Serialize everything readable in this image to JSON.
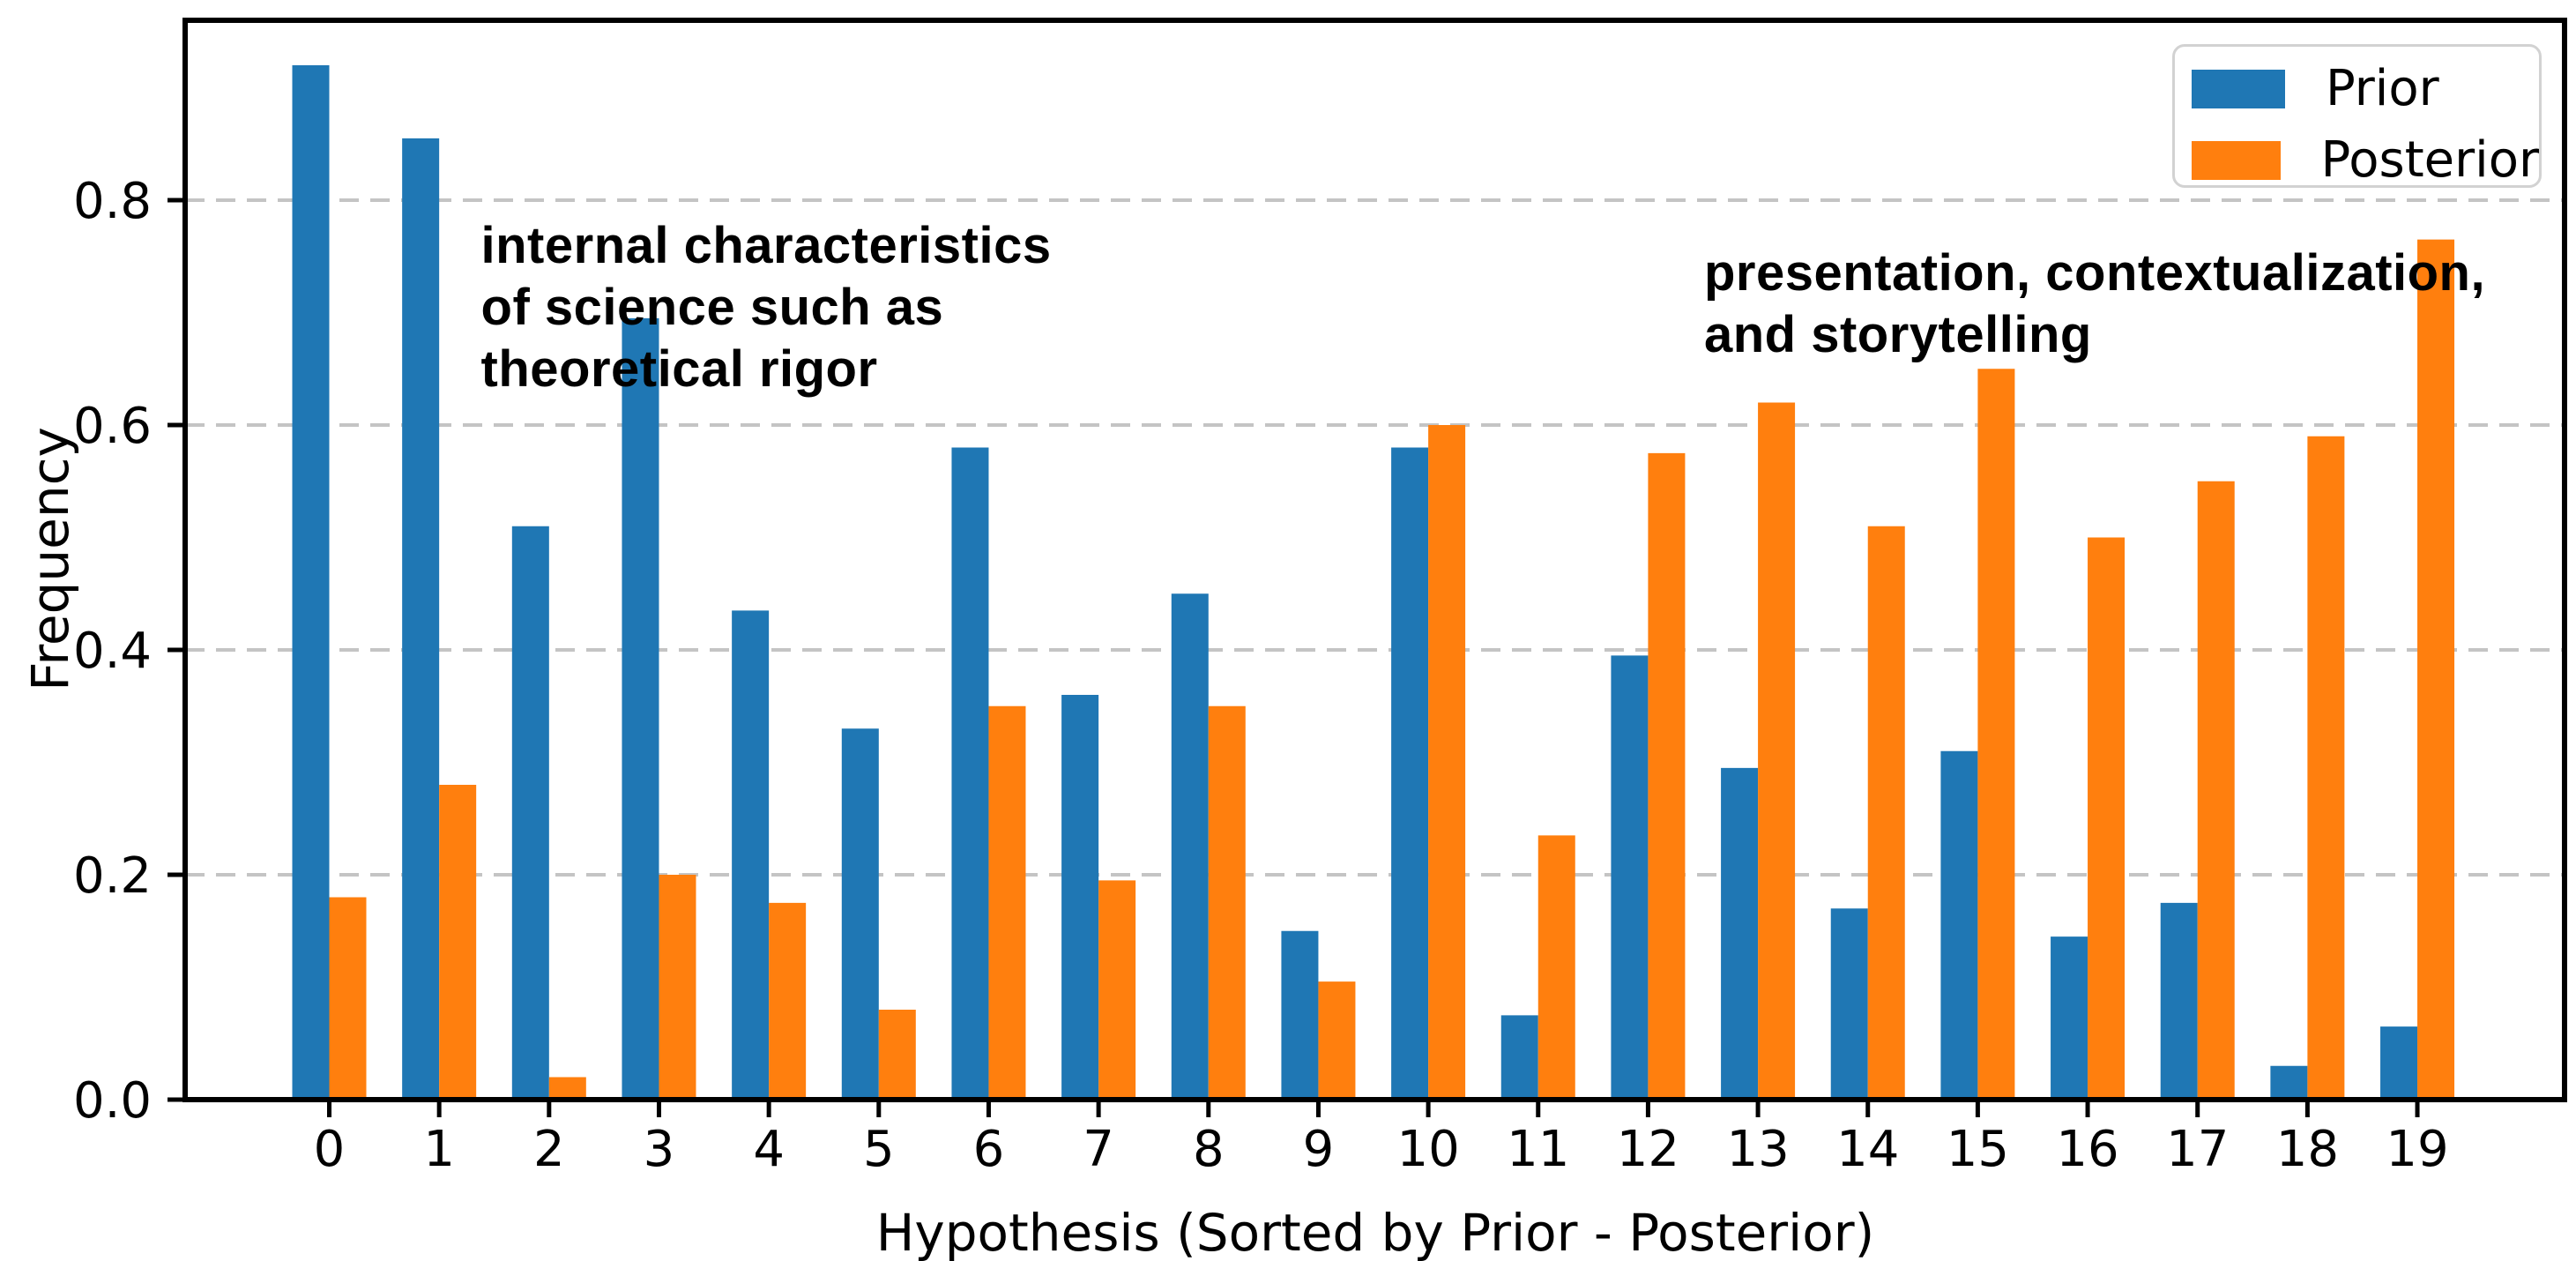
{
  "chart_data": {
    "type": "bar",
    "title": "",
    "xlabel": "Hypothesis (Sorted by Prior - Posterior)",
    "ylabel": "Frequency",
    "categories": [
      "0",
      "1",
      "2",
      "3",
      "4",
      "5",
      "6",
      "7",
      "8",
      "9",
      "10",
      "11",
      "12",
      "13",
      "14",
      "15",
      "16",
      "17",
      "18",
      "19"
    ],
    "series": [
      {
        "name": "Prior",
        "color": "#1f77b4",
        "values": [
          0.92,
          0.855,
          0.51,
          0.695,
          0.435,
          0.33,
          0.58,
          0.36,
          0.45,
          0.15,
          0.58,
          0.075,
          0.395,
          0.295,
          0.17,
          0.31,
          0.145,
          0.175,
          0.03,
          0.065
        ]
      },
      {
        "name": "Posterior",
        "color": "#ff7f0e",
        "values": [
          0.18,
          0.28,
          0.02,
          0.2,
          0.175,
          0.08,
          0.35,
          0.195,
          0.35,
          0.105,
          0.6,
          0.235,
          0.575,
          0.62,
          0.51,
          0.65,
          0.5,
          0.55,
          0.59,
          0.765
        ]
      }
    ],
    "ylim": [
      0,
      0.96
    ],
    "yticks": [
      0.0,
      0.2,
      0.4,
      0.6,
      0.8
    ],
    "ytick_labels": [
      "0.0",
      "0.2",
      "0.4",
      "0.6",
      "0.8"
    ],
    "grid": {
      "axis": "y",
      "style": "dashed",
      "color": "#c4c4c4"
    },
    "legend": {
      "position": "upper right",
      "entries": [
        "Prior",
        "Posterior"
      ]
    },
    "annotations": [
      {
        "x": 1.38,
        "y": 0.787,
        "bold": true,
        "lines": [
          "internal characteristics",
          "of science such as",
          "theoretical rigor"
        ]
      },
      {
        "x": 12.51,
        "y": 0.762,
        "bold": true,
        "lines": [
          "presentation, contextualization,",
          "and storytelling"
        ]
      }
    ]
  }
}
